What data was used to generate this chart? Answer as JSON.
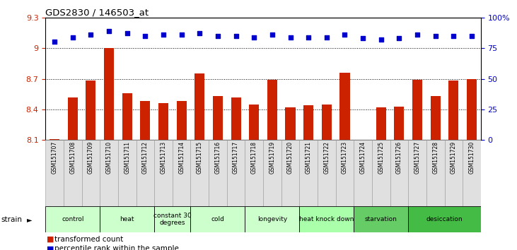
{
  "title": "GDS2830 / 146503_at",
  "samples": [
    "GSM151707",
    "GSM151708",
    "GSM151709",
    "GSM151710",
    "GSM151711",
    "GSM151712",
    "GSM151713",
    "GSM151714",
    "GSM151715",
    "GSM151716",
    "GSM151717",
    "GSM151718",
    "GSM151719",
    "GSM151720",
    "GSM151721",
    "GSM151722",
    "GSM151723",
    "GSM151724",
    "GSM151725",
    "GSM151726",
    "GSM151727",
    "GSM151728",
    "GSM151729",
    "GSM151730"
  ],
  "bar_values": [
    8.11,
    8.52,
    8.68,
    9.0,
    8.56,
    8.48,
    8.46,
    8.48,
    8.75,
    8.53,
    8.52,
    8.45,
    8.69,
    8.42,
    8.44,
    8.45,
    8.76,
    8.1,
    8.42,
    8.43,
    8.69,
    8.53,
    8.68,
    8.7
  ],
  "dot_values": [
    80,
    84,
    86,
    89,
    87,
    85,
    86,
    86,
    87,
    85,
    85,
    84,
    86,
    84,
    84,
    84,
    86,
    83,
    82,
    83,
    86,
    85,
    85,
    85
  ],
  "ylim_left": [
    8.1,
    9.3
  ],
  "ylim_right": [
    0,
    100
  ],
  "yticks_left": [
    8.1,
    8.4,
    8.7,
    9.0,
    9.3
  ],
  "yticks_right": [
    0,
    25,
    50,
    75,
    100
  ],
  "ytick_labels_left": [
    "8.1",
    "8.4",
    "8.7",
    "9",
    "9.3"
  ],
  "ytick_labels_right": [
    "0",
    "25",
    "50",
    "75",
    "100%"
  ],
  "gridlines": [
    9.0,
    8.7,
    8.4
  ],
  "bar_color": "#cc2200",
  "dot_color": "#0000cc",
  "groups": [
    {
      "label": "control",
      "start": 0,
      "end": 3,
      "color": "#ccffcc"
    },
    {
      "label": "heat",
      "start": 3,
      "end": 6,
      "color": "#ccffcc"
    },
    {
      "label": "constant 30\ndegrees",
      "start": 6,
      "end": 8,
      "color": "#ccffcc"
    },
    {
      "label": "cold",
      "start": 8,
      "end": 11,
      "color": "#ccffcc"
    },
    {
      "label": "longevity",
      "start": 11,
      "end": 14,
      "color": "#ccffcc"
    },
    {
      "label": "heat knock down",
      "start": 14,
      "end": 17,
      "color": "#aaffaa"
    },
    {
      "label": "starvation",
      "start": 17,
      "end": 20,
      "color": "#66cc66"
    },
    {
      "label": "desiccation",
      "start": 20,
      "end": 24,
      "color": "#44bb44"
    }
  ],
  "legend_bar_label": "transformed count",
  "legend_dot_label": "percentile rank within the sample",
  "strain_label": "strain",
  "tick_color_left": "#cc2200",
  "tick_color_right": "#0000cc"
}
